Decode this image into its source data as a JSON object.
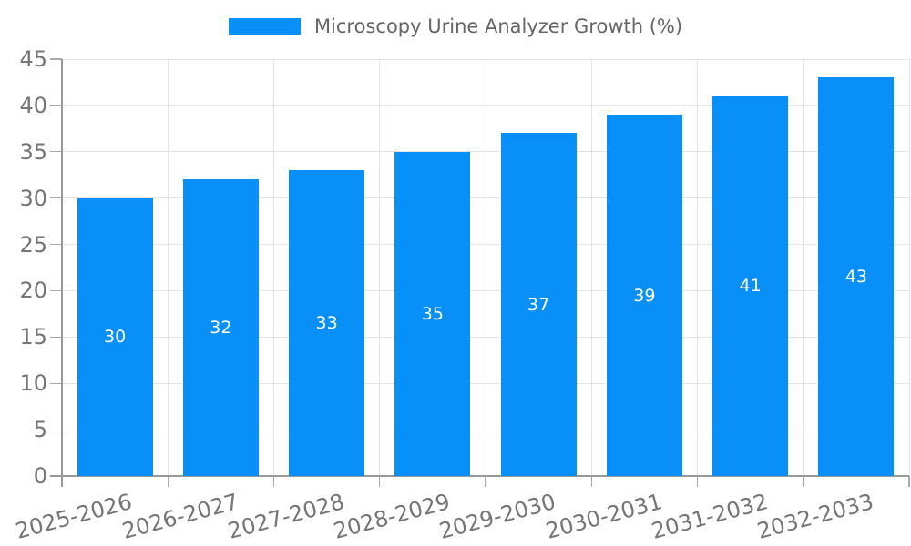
{
  "legend": {
    "label": "Microscopy Urine Analyzer Growth (%)"
  },
  "chart_data": {
    "type": "bar",
    "title": "",
    "xlabel": "",
    "ylabel": "",
    "categories": [
      "2025-2026",
      "2026-2027",
      "2027-2028",
      "2028-2029",
      "2029-2030",
      "2030-2031",
      "2031-2032",
      "2032-2033"
    ],
    "values": [
      30,
      32,
      33,
      35,
      37,
      39,
      41,
      43
    ],
    "series_name": "Microscopy Urine Analyzer Growth (%)",
    "ylim": [
      0,
      45
    ],
    "ytick_step": 5,
    "ytick_labels": [
      "0",
      "5",
      "10",
      "15",
      "20",
      "25",
      "30",
      "35",
      "40",
      "45"
    ],
    "grid": true,
    "legend_position": "top-center",
    "colors": {
      "bar": "#0890f8",
      "value_label": "#ffffff",
      "axis_line": "#999999",
      "tick_mark": "#aaaaaa",
      "gridline": "#e4e4e4",
      "tick_label": "#757575",
      "legend_text": "#666666",
      "background": "#ffffff"
    }
  }
}
